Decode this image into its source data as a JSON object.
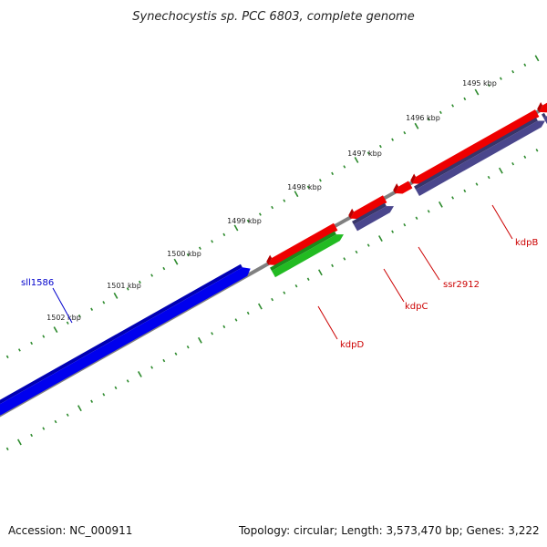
{
  "title": "Synechocystis sp. PCC 6803, complete genome",
  "ruler": {
    "tick_labels": [
      "1495 kbp",
      "1496 kbp",
      "1497 kbp",
      "1498 kbp",
      "1499 kbp",
      "1500 kbp",
      "1501 kbp",
      "1502 kbp"
    ],
    "color": "#2e8b2e"
  },
  "genome_line_color": "#808080",
  "genes": [
    {
      "label": "sll1586",
      "color": "#0000ee",
      "label_color": "#0000cc"
    },
    {
      "label": "kdpD",
      "color": "#ee0000",
      "label_color": "#cc0000"
    },
    {
      "label": "kdpC",
      "color": "#ee0000",
      "label_color": "#cc0000"
    },
    {
      "label": "ssr2912",
      "color": "#ee0000",
      "label_color": "#cc0000"
    },
    {
      "label": "kdpB",
      "color": "#ee0000",
      "label_color": "#cc0000"
    }
  ],
  "legend_colors": {
    "blue": "#0000ee",
    "red": "#ee0000",
    "green": "#22bb22",
    "purple": "#4a468c"
  },
  "footer": {
    "accession": "Accession: NC_000911",
    "summary": "Topology: circular; Length: 3,573,470 bp; Genes: 3,222"
  }
}
